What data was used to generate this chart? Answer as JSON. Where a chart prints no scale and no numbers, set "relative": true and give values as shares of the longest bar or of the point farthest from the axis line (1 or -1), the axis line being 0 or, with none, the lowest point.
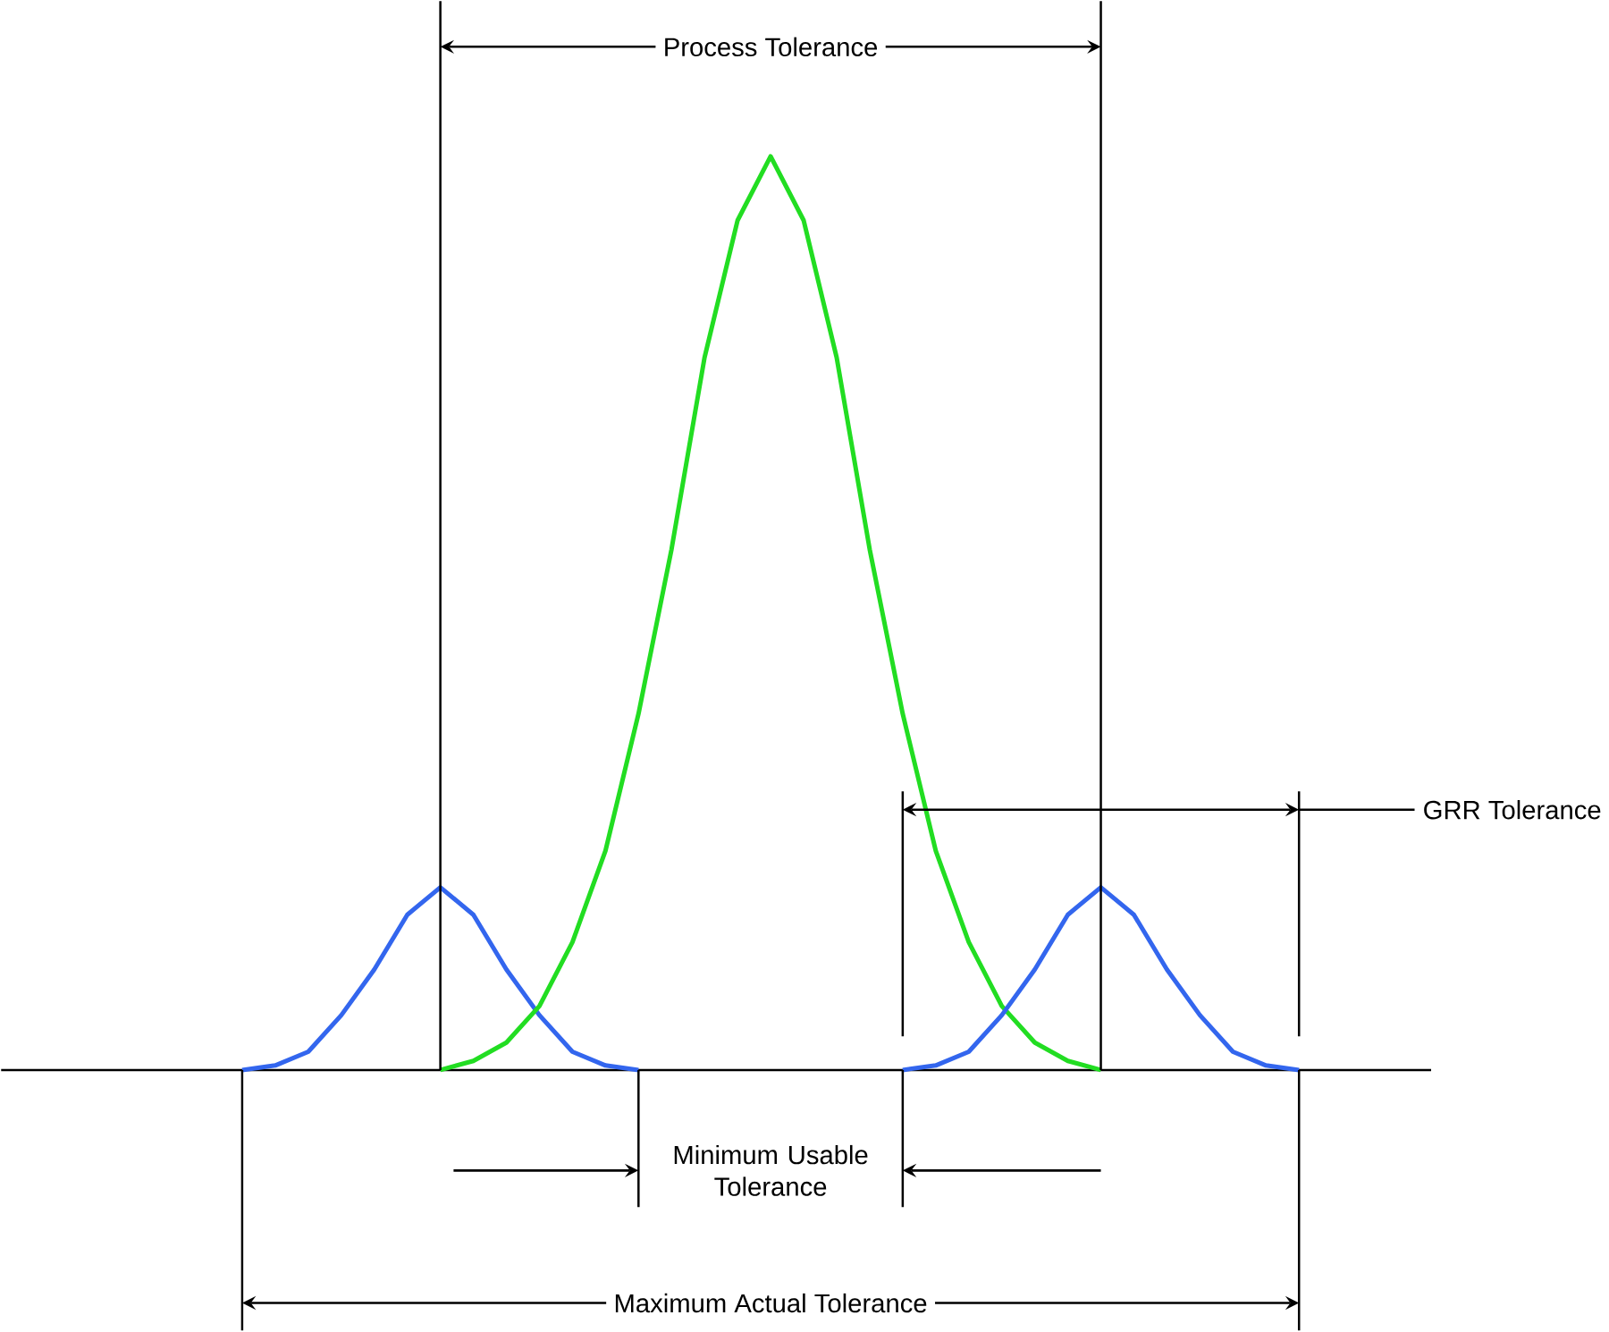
{
  "chart_data": {
    "type": "line",
    "relative": true,
    "categories": [
      null,
      null,
      null,
      null,
      null,
      null,
      null,
      null,
      null,
      null,
      null,
      null,
      null,
      null,
      null,
      null,
      null,
      null,
      null,
      null,
      null,
      null,
      null,
      null,
      null,
      null,
      null,
      null,
      null,
      null,
      null,
      null,
      null
    ],
    "series": [
      {
        "color": "#3366ee",
        "values": [
          0,
          0.005,
          0.02,
          0.06,
          0.11,
          0.17,
          0.2,
          0.17,
          0.11,
          0.06,
          0.02,
          0.005,
          0,
          null,
          null,
          null,
          null,
          null,
          null,
          null,
          null,
          null,
          null,
          null,
          null,
          null,
          null,
          null,
          null,
          null,
          null,
          null,
          null
        ]
      },
      {
        "color": "#22dd22",
        "values": [
          null,
          null,
          null,
          null,
          null,
          null,
          0,
          0.01,
          0.03,
          0.07,
          0.14,
          0.24,
          0.39,
          0.57,
          0.78,
          0.93,
          1,
          0.93,
          0.78,
          0.57,
          0.39,
          0.24,
          0.14,
          0.07,
          0.03,
          0.01,
          0,
          null,
          null,
          null,
          null,
          null,
          null
        ]
      },
      {
        "color": "#3366ee",
        "values": [
          null,
          null,
          null,
          null,
          null,
          null,
          null,
          null,
          null,
          null,
          null,
          null,
          null,
          null,
          null,
          null,
          null,
          null,
          null,
          null,
          0,
          0.005,
          0.02,
          0.06,
          0.11,
          0.17,
          0.2,
          0.17,
          0.11,
          0.06,
          0.02,
          0.005,
          0
        ]
      }
    ],
    "annotations": [
      "Process Tolerance",
      "GRR Tolerance",
      "Minimum Usable Tolerance",
      "Maximum Actual Tolerance"
    ]
  }
}
